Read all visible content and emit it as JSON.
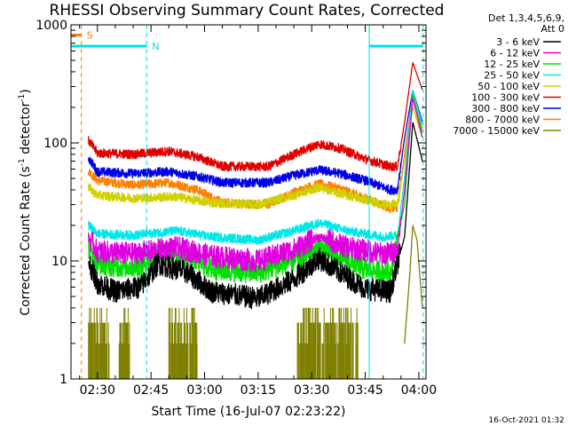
{
  "chart_data": {
    "type": "line",
    "title": "RHESSI Observing Summary Count Rates, Corrected",
    "xlabel": "Start Time (16-Jul-07 02:23:22)",
    "ylabel_main": "Corrected Count Rate (s",
    "ylabel_sup1": "-1",
    "ylabel_mid": " detector",
    "ylabel_sup2": "-1",
    "ylabel_end": ")",
    "footer": "16-Oct-2021 01:32",
    "yscale": "log",
    "ylim": [
      1,
      1000
    ],
    "xlim_minutes": [
      -7.4,
      92
    ],
    "x_ticks": [
      {
        "t": 0,
        "label": "02:30"
      },
      {
        "t": 15,
        "label": "02:45"
      },
      {
        "t": 30,
        "label": "03:00"
      },
      {
        "t": 45,
        "label": "03:15"
      },
      {
        "t": 60,
        "label": "03:30"
      },
      {
        "t": 75,
        "label": "03:45"
      },
      {
        "t": 90,
        "label": "04:00"
      }
    ],
    "y_ticks": [
      {
        "v": 1,
        "label": "1"
      },
      {
        "v": 10,
        "label": "10"
      },
      {
        "v": 100,
        "label": "100"
      },
      {
        "v": 1000,
        "label": "1000"
      }
    ],
    "legend_header": [
      "Det 1,3,4,5,6,9,",
      "Att 0"
    ],
    "series": [
      {
        "name": "3 - 6 keV",
        "color": "#000000",
        "knots": [
          [
            -2.5,
            10
          ],
          [
            0,
            6.5
          ],
          [
            5,
            5.5
          ],
          [
            12,
            6
          ],
          [
            17,
            9.5
          ],
          [
            25,
            8
          ],
          [
            32,
            5.5
          ],
          [
            45,
            4.8
          ],
          [
            55,
            7
          ],
          [
            62,
            10.5
          ],
          [
            68,
            8
          ],
          [
            75,
            5.8
          ],
          [
            82,
            5.5
          ],
          [
            86,
            16
          ],
          [
            88.3,
            150
          ],
          [
            91,
            70
          ]
        ]
      },
      {
        "name": "6 - 12 keV",
        "color": "#e000e0",
        "knots": [
          [
            -2.5,
            16
          ],
          [
            0,
            12
          ],
          [
            10,
            11.5
          ],
          [
            22,
            13
          ],
          [
            32,
            11
          ],
          [
            45,
            10
          ],
          [
            55,
            12.5
          ],
          [
            62,
            16
          ],
          [
            70,
            13
          ],
          [
            80,
            11.5
          ],
          [
            84,
            12
          ],
          [
            86,
            40
          ],
          [
            88.3,
            240
          ],
          [
            91,
            110
          ]
        ]
      },
      {
        "name": "12 - 25 keV",
        "color": "#00e000",
        "knots": [
          [
            -2.5,
            13
          ],
          [
            0,
            9.5
          ],
          [
            5,
            9
          ],
          [
            12,
            9
          ],
          [
            18,
            12
          ],
          [
            26,
            11
          ],
          [
            32,
            8.5
          ],
          [
            45,
            8
          ],
          [
            55,
            10
          ],
          [
            62,
            13
          ],
          [
            68,
            11
          ],
          [
            75,
            8.5
          ],
          [
            82,
            8
          ],
          [
            86,
            30
          ],
          [
            88.3,
            260
          ],
          [
            91,
            120
          ]
        ]
      },
      {
        "name": "25 - 50 keV",
        "color": "#00e8e8",
        "knots": [
          [
            -2.5,
            20
          ],
          [
            0,
            17
          ],
          [
            10,
            16.5
          ],
          [
            22,
            18
          ],
          [
            32,
            16
          ],
          [
            45,
            15
          ],
          [
            55,
            18
          ],
          [
            62,
            21
          ],
          [
            70,
            18
          ],
          [
            80,
            16
          ],
          [
            84,
            16.5
          ],
          [
            86,
            50
          ],
          [
            88.3,
            280
          ],
          [
            91,
            140
          ]
        ]
      },
      {
        "name": "50 - 100 keV",
        "color": "#d0d000",
        "knots": [
          [
            -2.5,
            42
          ],
          [
            0,
            36
          ],
          [
            10,
            34
          ],
          [
            22,
            35
          ],
          [
            32,
            31
          ],
          [
            45,
            30
          ],
          [
            55,
            36
          ],
          [
            62,
            42
          ],
          [
            70,
            36
          ],
          [
            80,
            30
          ],
          [
            84,
            30
          ],
          [
            86,
            70
          ],
          [
            88.3,
            200
          ],
          [
            91,
            110
          ]
        ]
      },
      {
        "name": "100 - 300 keV",
        "color": "#e00000",
        "knots": [
          [
            -2.5,
            105
          ],
          [
            0,
            82
          ],
          [
            10,
            80
          ],
          [
            20,
            85
          ],
          [
            28,
            76
          ],
          [
            35,
            63
          ],
          [
            48,
            63
          ],
          [
            55,
            80
          ],
          [
            62,
            98
          ],
          [
            68,
            90
          ],
          [
            75,
            73
          ],
          [
            82,
            63
          ],
          [
            84,
            63
          ],
          [
            86,
            150
          ],
          [
            88.3,
            480
          ],
          [
            91,
            280
          ]
        ]
      },
      {
        "name": "300 - 800 keV",
        "color": "#0000e8",
        "knots": [
          [
            -2.5,
            75
          ],
          [
            0,
            57
          ],
          [
            10,
            55
          ],
          [
            20,
            57
          ],
          [
            28,
            52
          ],
          [
            35,
            46
          ],
          [
            48,
            46
          ],
          [
            55,
            53
          ],
          [
            62,
            59
          ],
          [
            68,
            55
          ],
          [
            75,
            48
          ],
          [
            82,
            40
          ],
          [
            84,
            40
          ],
          [
            86,
            110
          ],
          [
            88.3,
            280
          ],
          [
            91,
            150
          ]
        ]
      },
      {
        "name": "800 - 7000 keV",
        "color": "#ff7f00",
        "knots": [
          [
            -2.5,
            58
          ],
          [
            0,
            48
          ],
          [
            10,
            44
          ],
          [
            20,
            46
          ],
          [
            28,
            40
          ],
          [
            35,
            31
          ],
          [
            48,
            30
          ],
          [
            55,
            38
          ],
          [
            62,
            45
          ],
          [
            68,
            41
          ],
          [
            75,
            34
          ],
          [
            82,
            28
          ],
          [
            84,
            28
          ],
          [
            86,
            80
          ],
          [
            88.3,
            250
          ],
          [
            91,
            130
          ]
        ]
      },
      {
        "name": "7000 - 15000 keV",
        "color": "#808000",
        "knots": [
          [
            86,
            2
          ],
          [
            87.5,
            8
          ],
          [
            88.3,
            20
          ],
          [
            89.5,
            15
          ],
          [
            91,
            4
          ]
        ]
      }
    ],
    "bg_noise": {
      "name": "7000 - 15000 keV background",
      "color": "#808000",
      "segments": [
        [
          -2.5,
          3.3
        ],
        [
          6,
          9
        ],
        [
          20,
          28
        ],
        [
          56,
          73
        ]
      ]
    },
    "markers": {
      "s_dashed": {
        "t": -4.5,
        "label": "S",
        "color": "#ff7f00"
      },
      "cyan_solid": [
        -7.4,
        76.1
      ],
      "cyan_dashed": [
        13.8,
        91.2
      ],
      "n_label": "N",
      "cyan_bars": [
        [
          -7.4,
          13.8
        ],
        [
          76.1,
          91.2
        ]
      ],
      "s_bar": [
        -7.4,
        -4.6
      ],
      "bar_level": 660
    }
  }
}
